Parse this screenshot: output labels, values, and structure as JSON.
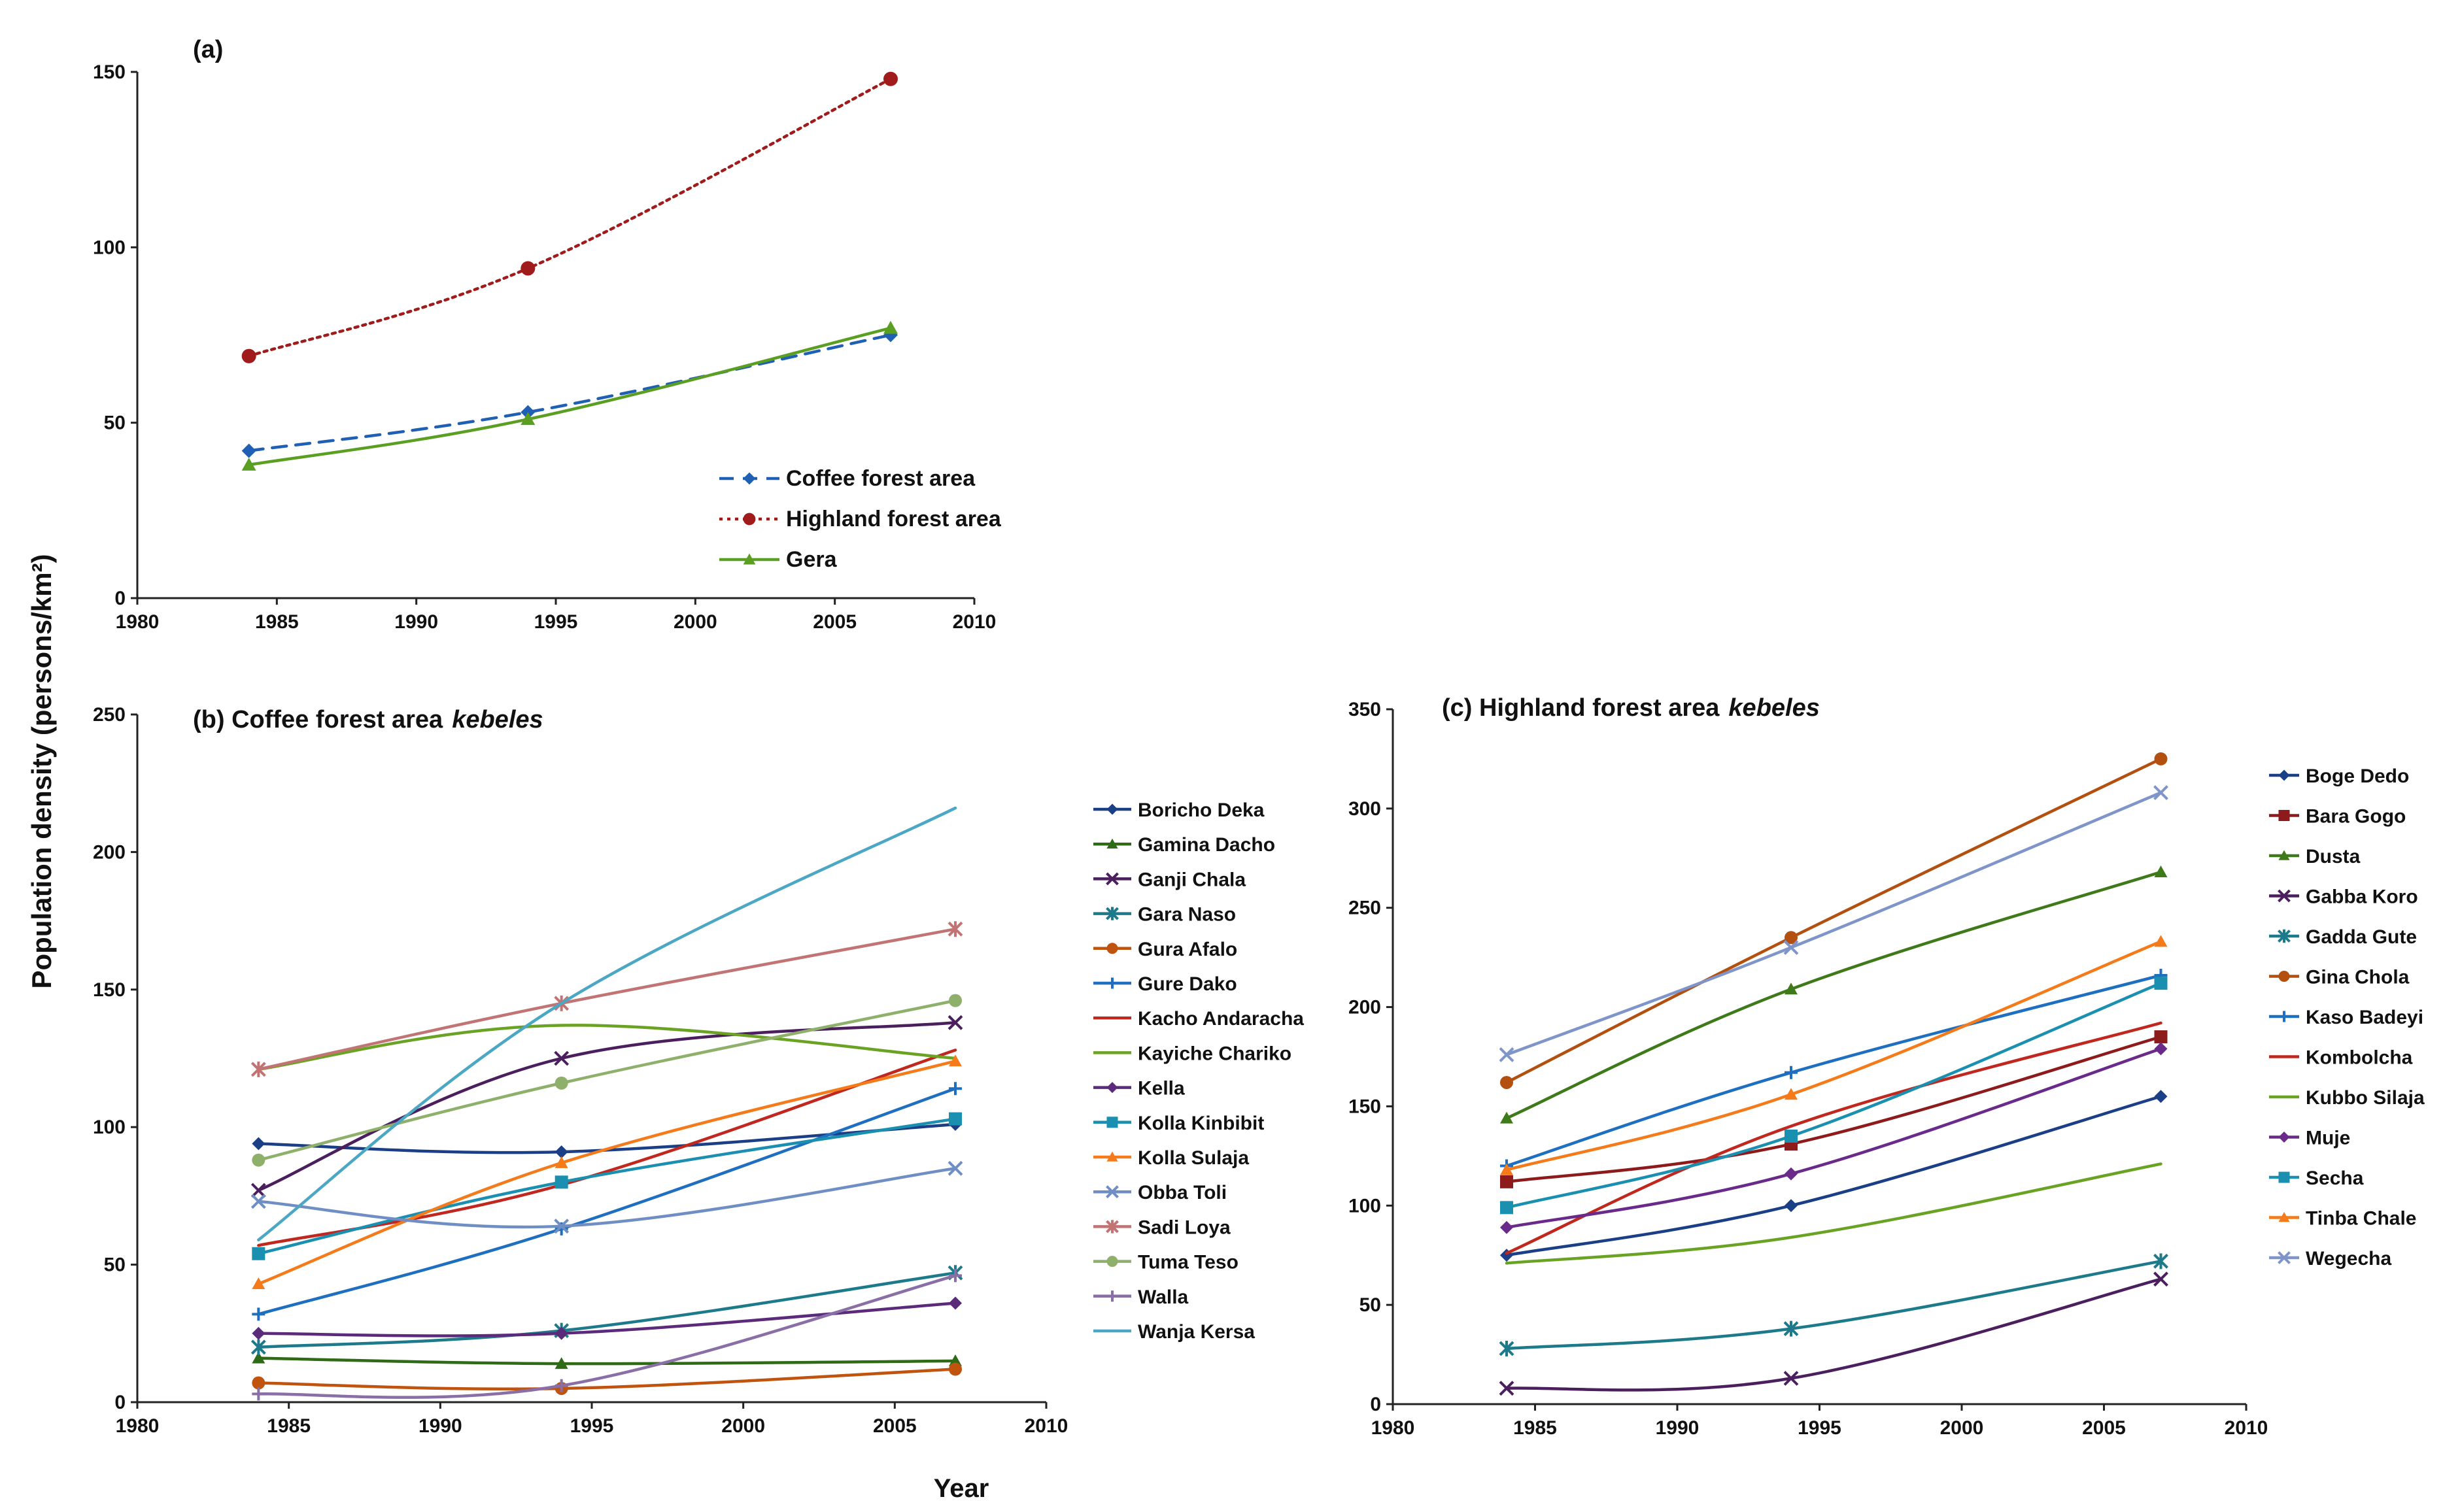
{
  "figure": {
    "ylabel": "Population density (persons/km²)",
    "xlabel": "Year"
  },
  "chart_data": [
    {
      "type": "line",
      "title": "(a)",
      "x_range": [
        1980,
        2010
      ],
      "x_ticks": [
        "1980",
        "1985",
        "1990",
        "1995",
        "2000",
        "2005",
        "2010"
      ],
      "ylim": [
        0,
        150
      ],
      "y_ticks": [
        "0",
        "50",
        "100",
        "150"
      ],
      "legend_position": "bottom-right",
      "series": [
        {
          "name": "Coffee forest area",
          "x": [
            1984,
            1994,
            2007
          ],
          "values": [
            42,
            53,
            75
          ],
          "color": "#1f5fb4",
          "marker": "diamond",
          "dash": "dashed"
        },
        {
          "name": "Highland forest area",
          "x": [
            1984,
            1994,
            2007
          ],
          "values": [
            69,
            94,
            148
          ],
          "color": "#a01c1c",
          "marker": "circle",
          "dash": "dotted"
        },
        {
          "name": "Gera",
          "x": [
            1984,
            1994,
            2007
          ],
          "values": [
            38,
            51,
            77
          ],
          "color": "#5a9e22",
          "marker": "triangle",
          "dash": "solid"
        }
      ]
    },
    {
      "type": "line",
      "title": "(b) Coffee forest area",
      "title_italic": "kebeles",
      "x_range": [
        1980,
        2010
      ],
      "x_ticks": [
        "1980",
        "1985",
        "1990",
        "1995",
        "2000",
        "2005",
        "2010"
      ],
      "ylim": [
        0,
        250
      ],
      "y_ticks": [
        "0",
        "50",
        "100",
        "150",
        "200",
        "250"
      ],
      "legend_position": "right",
      "series": [
        {
          "name": "Boricho Deka",
          "x": [
            1984,
            1994,
            2007
          ],
          "values": [
            94,
            91,
            101
          ],
          "color": "#1b3f86",
          "marker": "diamond"
        },
        {
          "name": "Gamina Dacho",
          "x": [
            1984,
            1994,
            2007
          ],
          "values": [
            16,
            14,
            15
          ],
          "color": "#2f6b17",
          "marker": "triangle"
        },
        {
          "name": "Ganji Chala",
          "x": [
            1984,
            1994,
            2007
          ],
          "values": [
            77,
            125,
            138
          ],
          "color": "#4b1f5e",
          "marker": "x"
        },
        {
          "name": "Gara Naso",
          "x": [
            1984,
            1994,
            2007
          ],
          "values": [
            20,
            26,
            47
          ],
          "color": "#1d7a8a",
          "marker": "star"
        },
        {
          "name": "Gura Afalo",
          "x": [
            1984,
            1994,
            2007
          ],
          "values": [
            7,
            5,
            12
          ],
          "color": "#c0540f",
          "marker": "circle"
        },
        {
          "name": "Gure Dako",
          "x": [
            1984,
            1994,
            2007
          ],
          "values": [
            32,
            63,
            114
          ],
          "color": "#1f6fc0",
          "marker": "plus"
        },
        {
          "name": "Kacho Andaracha",
          "x": [
            1984,
            1994,
            2007
          ],
          "values": [
            57,
            79,
            128
          ],
          "color": "#c0281f",
          "marker": "none"
        },
        {
          "name": "Kayiche Chariko",
          "x": [
            1984,
            1994,
            2007
          ],
          "values": [
            121,
            137,
            125
          ],
          "color": "#6aa324",
          "marker": "none"
        },
        {
          "name": "Kella",
          "x": [
            1984,
            1994,
            2007
          ],
          "values": [
            25,
            25,
            36
          ],
          "color": "#5b2a7a",
          "marker": "diamond"
        },
        {
          "name": "Kolla Kinbibit",
          "x": [
            1984,
            1994,
            2007
          ],
          "values": [
            54,
            80,
            103
          ],
          "color": "#1b8fb0",
          "marker": "square"
        },
        {
          "name": "Kolla Sulaja",
          "x": [
            1984,
            1994,
            2007
          ],
          "values": [
            43,
            87,
            124
          ],
          "color": "#f47a1a",
          "marker": "triangle"
        },
        {
          "name": "Obba Toli",
          "x": [
            1984,
            1994,
            2007
          ],
          "values": [
            73,
            64,
            85
          ],
          "color": "#6f8fc4",
          "marker": "x"
        },
        {
          "name": "Sadi Loya",
          "x": [
            1984,
            1994,
            2007
          ],
          "values": [
            121,
            145,
            172
          ],
          "color": "#c27474",
          "marker": "star"
        },
        {
          "name": "Tuma Teso",
          "x": [
            1984,
            1994,
            2007
          ],
          "values": [
            88,
            116,
            146
          ],
          "color": "#8fb06a",
          "marker": "circle"
        },
        {
          "name": "Walla",
          "x": [
            1984,
            1994,
            2007
          ],
          "values": [
            3,
            6,
            46
          ],
          "color": "#8a6ea6",
          "marker": "plus"
        },
        {
          "name": "Wanja Kersa",
          "x": [
            1984,
            1994,
            2007
          ],
          "values": [
            59,
            145,
            216
          ],
          "color": "#4ba7c4",
          "marker": "none"
        }
      ]
    },
    {
      "type": "line",
      "title": "(c) Highland forest area",
      "title_italic": "kebeles",
      "x_range": [
        1980,
        2010
      ],
      "x_ticks": [
        "1980",
        "1985",
        "1990",
        "1995",
        "2000",
        "2005",
        "2010"
      ],
      "ylim": [
        0,
        350
      ],
      "y_ticks": [
        "0",
        "50",
        "100",
        "150",
        "200",
        "250",
        "300",
        "350"
      ],
      "legend_position": "right",
      "series": [
        {
          "name": "Boge Dedo",
          "x": [
            1984,
            1994,
            2007
          ],
          "values": [
            75,
            100,
            155
          ],
          "color": "#1b3f86",
          "marker": "diamond"
        },
        {
          "name": "Bara Gogo",
          "x": [
            1984,
            1994,
            2007
          ],
          "values": [
            112,
            131,
            185
          ],
          "color": "#8e1b1b",
          "marker": "square"
        },
        {
          "name": "Dusta",
          "x": [
            1984,
            1994,
            2007
          ],
          "values": [
            144,
            209,
            268
          ],
          "color": "#3f7a1a",
          "marker": "triangle"
        },
        {
          "name": "Gabba Koro",
          "x": [
            1984,
            1994,
            2007
          ],
          "values": [
            8,
            13,
            63
          ],
          "color": "#4b1f5e",
          "marker": "x"
        },
        {
          "name": "Gadda Gute",
          "x": [
            1984,
            1994,
            2007
          ],
          "values": [
            28,
            38,
            72
          ],
          "color": "#1d7a8a",
          "marker": "star"
        },
        {
          "name": "Gina Chola",
          "x": [
            1984,
            1994,
            2007
          ],
          "values": [
            162,
            235,
            325
          ],
          "color": "#b4500f",
          "marker": "circle"
        },
        {
          "name": "Kaso Badeyi",
          "x": [
            1984,
            1994,
            2007
          ],
          "values": [
            120,
            167,
            216
          ],
          "color": "#1f6fc0",
          "marker": "plus"
        },
        {
          "name": "Kombolcha",
          "x": [
            1984,
            1994,
            2007
          ],
          "values": [
            76,
            140,
            192
          ],
          "color": "#c0281f",
          "marker": "none"
        },
        {
          "name": "Kubbo Silaja",
          "x": [
            1984,
            1994,
            2007
          ],
          "values": [
            71,
            84,
            121
          ],
          "color": "#6aa324",
          "marker": "none"
        },
        {
          "name": "Muje",
          "x": [
            1984,
            1994,
            2007
          ],
          "values": [
            89,
            116,
            179
          ],
          "color": "#6a2a8a",
          "marker": "diamond"
        },
        {
          "name": "Secha",
          "x": [
            1984,
            1994,
            2007
          ],
          "values": [
            99,
            135,
            212
          ],
          "color": "#1b8fb0",
          "marker": "square"
        },
        {
          "name": "Tinba Chale",
          "x": [
            1984,
            1994,
            2007
          ],
          "values": [
            118,
            156,
            233
          ],
          "color": "#f47a1a",
          "marker": "triangle"
        },
        {
          "name": "Wegecha",
          "x": [
            1984,
            1994,
            2007
          ],
          "values": [
            176,
            230,
            308
          ],
          "color": "#7f95c9",
          "marker": "x"
        }
      ]
    }
  ]
}
